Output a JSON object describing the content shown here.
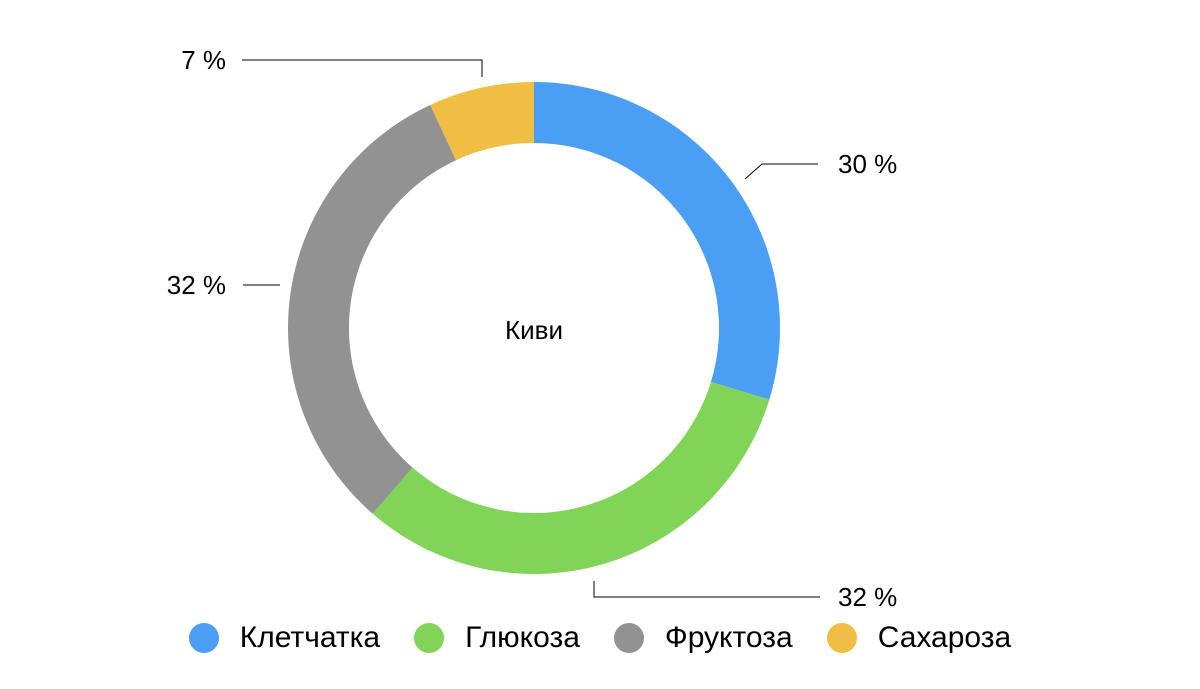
{
  "chart_data": {
    "type": "pie",
    "donut": true,
    "center_label": "Киви",
    "unit": "%",
    "categories": [
      "Клетчатка",
      "Глюкоза",
      "Фруктоза",
      "Сахароза"
    ],
    "values": [
      30,
      32,
      32,
      7
    ],
    "value_labels": [
      "30 %",
      "32 %",
      "32 %",
      "7 %"
    ],
    "colors": [
      "#4a9ff5",
      "#80d458",
      "#929292",
      "#f0be44"
    ],
    "start_angle_deg": 0,
    "direction": "clockwise",
    "legend_position": "bottom"
  }
}
